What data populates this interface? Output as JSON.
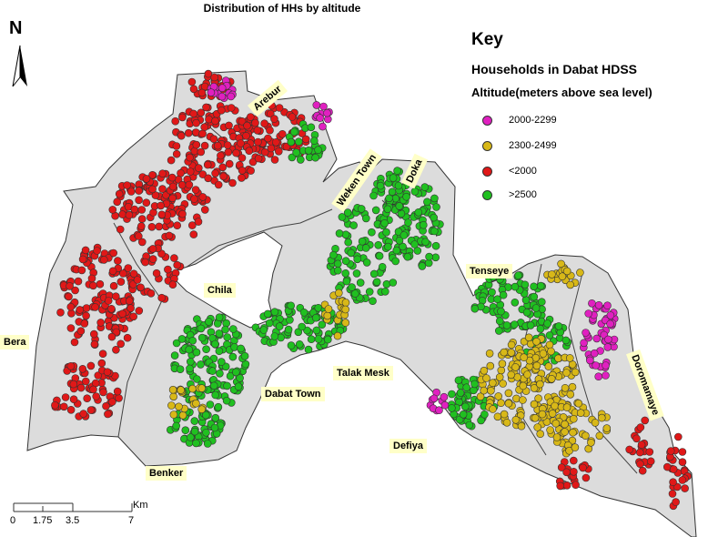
{
  "title": "Distribution of HHs by altitude",
  "key": {
    "title": "Key",
    "subtitle": "Households in Dabat HDSS",
    "altitude_label": "Altitude(meters above sea level)",
    "items": [
      {
        "label": "2000-2299",
        "color": "#e020c0"
      },
      {
        "label": "2300-2499",
        "color": "#d8b818"
      },
      {
        "label": "<2000",
        "color": "#e01818"
      },
      {
        "label": ">2500",
        "color": "#20c020"
      }
    ]
  },
  "places": {
    "arebur": "Arebur",
    "weken_town": "Weken Town",
    "doka": "Doka",
    "chila": "Chila",
    "bera": "Bera",
    "tenseye": "Tenseye",
    "doromamaye": "Doromamaye",
    "talak_mesk": "Talak Mesk",
    "dabat_town": "Dabat Town",
    "defiya": "Defiya",
    "benker": "Benker"
  },
  "north_label": "N",
  "scale": {
    "unit": "Km",
    "ticks": [
      "0",
      "1.75",
      "3.5",
      "7"
    ]
  },
  "colors": {
    "region_fill": "#dcdcdc",
    "label_bg": "#ffffc8"
  }
}
